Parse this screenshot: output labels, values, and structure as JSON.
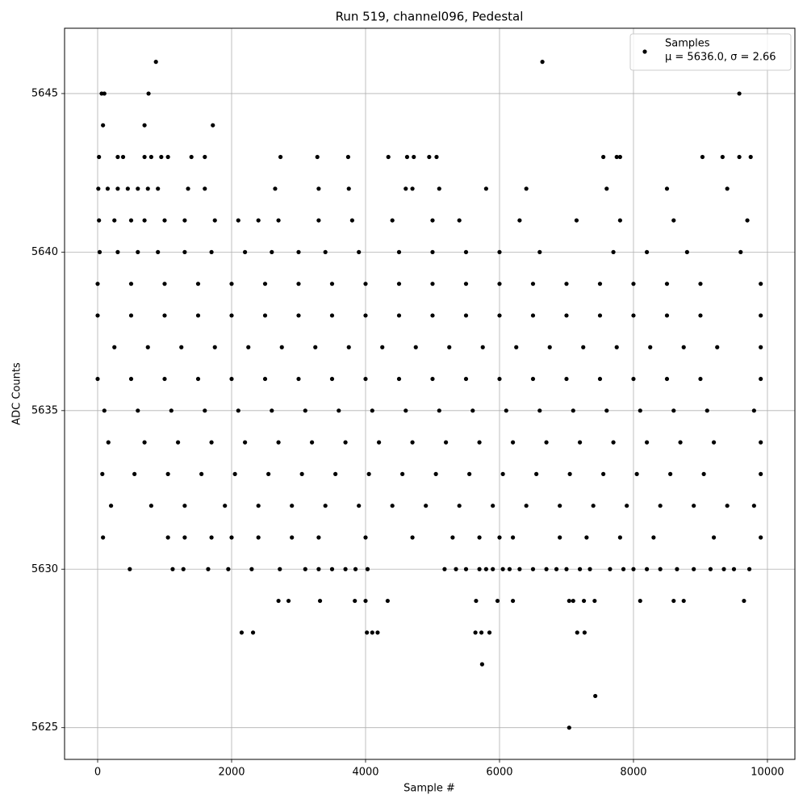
{
  "chart_data": {
    "type": "scatter",
    "title": "Run 519, channel096, Pedestal",
    "x_label": "Sample #",
    "y_label": "ADC Counts",
    "xlim": [
      -494,
      10410
    ],
    "ylim": [
      5624,
      5647.06
    ],
    "xticks": [
      0,
      2000,
      4000,
      6000,
      8000,
      10000
    ],
    "yticks": [
      5625,
      5630,
      5635,
      5640,
      5645
    ],
    "grid": true,
    "legend_position": "upper right",
    "legend_stats": "μ = 5636.0, σ = 2.66",
    "series": [
      {
        "name": "Samples",
        "color": "#000000",
        "x": [
          870,
          6640,
          60,
          100,
          760,
          9580,
          80,
          700,
          1720,
          20,
          300,
          380,
          700,
          800,
          950,
          1050,
          1400,
          1600,
          2730,
          3280,
          3740,
          4340,
          4620,
          4720,
          4950,
          5060,
          7550,
          7750,
          7800,
          9030,
          9330,
          9580,
          9750,
          10,
          150,
          300,
          450,
          600,
          750,
          900,
          1350,
          1600,
          2650,
          3300,
          3750,
          4600,
          4700,
          5100,
          5800,
          6400,
          7600,
          8500,
          9400,
          20,
          250,
          500,
          700,
          1000,
          1300,
          1750,
          2100,
          2400,
          2700,
          3300,
          3800,
          4400,
          5000,
          5400,
          6300,
          7150,
          7800,
          8600,
          9700,
          30,
          300,
          600,
          900,
          1300,
          1700,
          2200,
          2600,
          3000,
          3400,
          3900,
          4500,
          5000,
          5500,
          6000,
          6600,
          7700,
          8200,
          8800,
          9600,
          0,
          500,
          1000,
          1500,
          2000,
          2500,
          3000,
          3500,
          4000,
          4500,
          5000,
          5500,
          6000,
          6500,
          7000,
          7500,
          8000,
          8500,
          9000,
          9900,
          0,
          500,
          1000,
          1500,
          2000,
          2500,
          3000,
          3500,
          4000,
          4500,
          5000,
          5500,
          6000,
          6500,
          7000,
          7500,
          8000,
          8500,
          9000,
          9900,
          250,
          750,
          1250,
          1750,
          2250,
          2750,
          3250,
          3750,
          4250,
          4750,
          5250,
          5750,
          6250,
          6750,
          7250,
          7750,
          8250,
          8750,
          9250,
          9900,
          0,
          500,
          1000,
          1500,
          2000,
          2500,
          3000,
          3500,
          4000,
          4500,
          5000,
          5500,
          6000,
          6500,
          7000,
          7500,
          8000,
          8500,
          9000,
          9900,
          100,
          600,
          1100,
          1600,
          2100,
          2600,
          3100,
          3600,
          4100,
          4600,
          5100,
          5600,
          6100,
          6600,
          7100,
          7600,
          8100,
          8600,
          9100,
          9800,
          160,
          700,
          1200,
          1700,
          2200,
          2700,
          3200,
          3700,
          4200,
          4700,
          5200,
          5700,
          6200,
          6700,
          7200,
          7700,
          8200,
          8700,
          9200,
          9900,
          70,
          550,
          1050,
          1550,
          2050,
          2550,
          3050,
          3550,
          4050,
          4550,
          5050,
          5550,
          6050,
          6550,
          7050,
          7550,
          8050,
          8550,
          9050,
          9900,
          200,
          800,
          1300,
          1900,
          2400,
          2900,
          3400,
          3900,
          4400,
          4900,
          5400,
          5900,
          6400,
          6900,
          7400,
          7900,
          8400,
          8900,
          9400,
          9800,
          80,
          1050,
          1300,
          1700,
          2000,
          2400,
          2900,
          3300,
          4000,
          4700,
          5300,
          5700,
          6000,
          6200,
          6900,
          7300,
          7800,
          8300,
          9200,
          9900,
          480,
          1120,
          1280,
          1650,
          1950,
          2300,
          2720,
          3100,
          3300,
          3500,
          3700,
          3850,
          4030,
          5180,
          5350,
          5500,
          5700,
          5800,
          5900,
          6050,
          6150,
          6300,
          6500,
          6700,
          6850,
          7000,
          7200,
          7350,
          7650,
          7850,
          8000,
          8200,
          8400,
          8650,
          8900,
          9150,
          9350,
          9500,
          9730,
          2700,
          2850,
          3320,
          3840,
          4000,
          4330,
          5650,
          5970,
          6200,
          7040,
          7100,
          7260,
          7420,
          8100,
          8600,
          8750,
          9650,
          2150,
          2320,
          4020,
          4100,
          4180,
          5640,
          5730,
          5850,
          7160,
          7270,
          5740,
          7430,
          7040
        ],
        "values": [
          5646,
          5646,
          5645,
          5645,
          5645,
          5645,
          5644,
          5644,
          5644,
          5643,
          5643,
          5643,
          5643,
          5643,
          5643,
          5643,
          5643,
          5643,
          5643,
          5643,
          5643,
          5643,
          5643,
          5643,
          5643,
          5643,
          5643,
          5643,
          5643,
          5643,
          5643,
          5643,
          5643,
          5642,
          5642,
          5642,
          5642,
          5642,
          5642,
          5642,
          5642,
          5642,
          5642,
          5642,
          5642,
          5642,
          5642,
          5642,
          5642,
          5642,
          5642,
          5642,
          5642,
          5641,
          5641,
          5641,
          5641,
          5641,
          5641,
          5641,
          5641,
          5641,
          5641,
          5641,
          5641,
          5641,
          5641,
          5641,
          5641,
          5641,
          5641,
          5641,
          5641,
          5640,
          5640,
          5640,
          5640,
          5640,
          5640,
          5640,
          5640,
          5640,
          5640,
          5640,
          5640,
          5640,
          5640,
          5640,
          5640,
          5640,
          5640,
          5640,
          5640,
          5639,
          5639,
          5639,
          5639,
          5639,
          5639,
          5639,
          5639,
          5639,
          5639,
          5639,
          5639,
          5639,
          5639,
          5639,
          5639,
          5639,
          5639,
          5639,
          5639,
          5638,
          5638,
          5638,
          5638,
          5638,
          5638,
          5638,
          5638,
          5638,
          5638,
          5638,
          5638,
          5638,
          5638,
          5638,
          5638,
          5638,
          5638,
          5638,
          5638,
          5637,
          5637,
          5637,
          5637,
          5637,
          5637,
          5637,
          5637,
          5637,
          5637,
          5637,
          5637,
          5637,
          5637,
          5637,
          5637,
          5637,
          5637,
          5637,
          5637,
          5636,
          5636,
          5636,
          5636,
          5636,
          5636,
          5636,
          5636,
          5636,
          5636,
          5636,
          5636,
          5636,
          5636,
          5636,
          5636,
          5636,
          5636,
          5636,
          5636,
          5635,
          5635,
          5635,
          5635,
          5635,
          5635,
          5635,
          5635,
          5635,
          5635,
          5635,
          5635,
          5635,
          5635,
          5635,
          5635,
          5635,
          5635,
          5635,
          5635,
          5634,
          5634,
          5634,
          5634,
          5634,
          5634,
          5634,
          5634,
          5634,
          5634,
          5634,
          5634,
          5634,
          5634,
          5634,
          5634,
          5634,
          5634,
          5634,
          5634,
          5633,
          5633,
          5633,
          5633,
          5633,
          5633,
          5633,
          5633,
          5633,
          5633,
          5633,
          5633,
          5633,
          5633,
          5633,
          5633,
          5633,
          5633,
          5633,
          5633,
          5632,
          5632,
          5632,
          5632,
          5632,
          5632,
          5632,
          5632,
          5632,
          5632,
          5632,
          5632,
          5632,
          5632,
          5632,
          5632,
          5632,
          5632,
          5632,
          5632,
          5631,
          5631,
          5631,
          5631,
          5631,
          5631,
          5631,
          5631,
          5631,
          5631,
          5631,
          5631,
          5631,
          5631,
          5631,
          5631,
          5631,
          5631,
          5631,
          5631,
          5630,
          5630,
          5630,
          5630,
          5630,
          5630,
          5630,
          5630,
          5630,
          5630,
          5630,
          5630,
          5630,
          5630,
          5630,
          5630,
          5630,
          5630,
          5630,
          5630,
          5630,
          5630,
          5630,
          5630,
          5630,
          5630,
          5630,
          5630,
          5630,
          5630,
          5630,
          5630,
          5630,
          5630,
          5630,
          5630,
          5630,
          5630,
          5630,
          5629,
          5629,
          5629,
          5629,
          5629,
          5629,
          5629,
          5629,
          5629,
          5629,
          5629,
          5629,
          5629,
          5629,
          5629,
          5629,
          5629,
          5628,
          5628,
          5628,
          5628,
          5628,
          5628,
          5628,
          5628,
          5628,
          5628,
          5627,
          5626,
          5625
        ]
      }
    ]
  }
}
